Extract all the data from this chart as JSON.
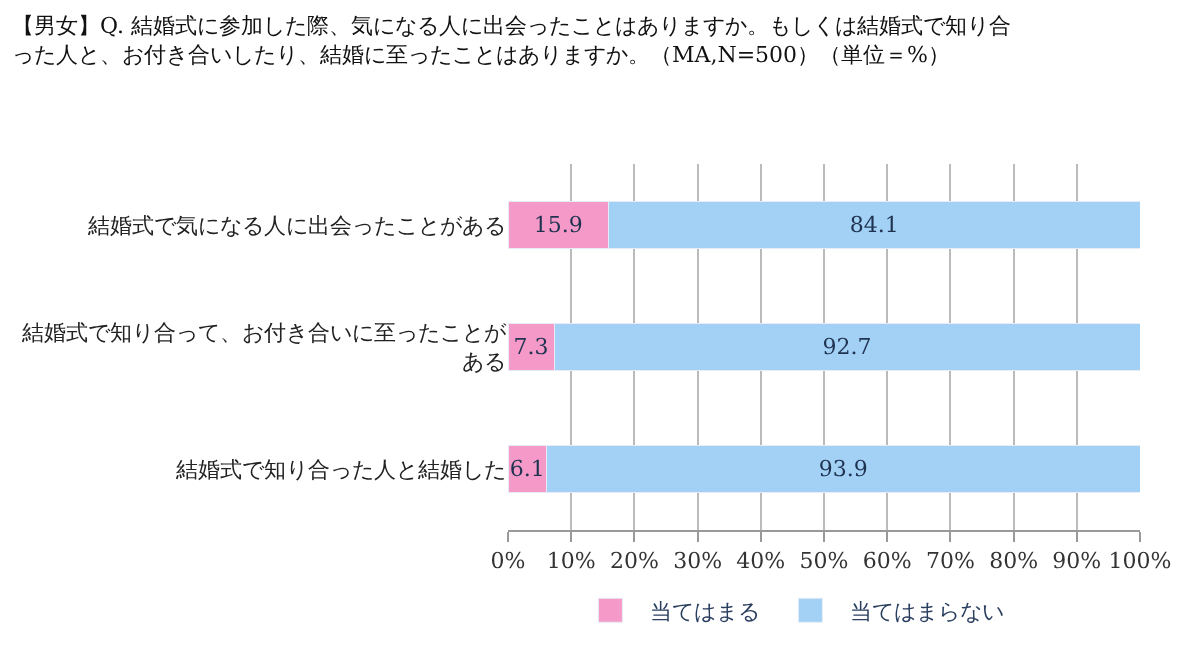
{
  "chart_data": {
    "type": "bar",
    "orientation": "horizontal",
    "stacked": true,
    "title": "【男女】Q. 結婚式に参加した際、気になる人に出会ったことはありますか。もしくは結婚式で知り合った人と、お付き合いしたり、結婚に至ったことはありますか。（MA,N=500）（単位＝%）",
    "categories": [
      "結婚式で気になる人に出会ったことがある",
      "結婚式で知り合って、お付き合いに至ったことがある",
      "結婚式で知り合った人と結婚した"
    ],
    "series": [
      {
        "name": "当てはまる",
        "color": "#f59ac8",
        "values": [
          15.9,
          7.3,
          6.1
        ]
      },
      {
        "name": "当てはまらない",
        "color": "#a3d0f5",
        "values": [
          84.1,
          92.7,
          93.9
        ]
      }
    ],
    "xlim": [
      0,
      100
    ],
    "xticks": [
      {
        "value": 0,
        "label": "0%"
      },
      {
        "value": 10,
        "label": "10%"
      },
      {
        "value": 20,
        "label": "20%"
      },
      {
        "value": 30,
        "label": "30%"
      },
      {
        "value": 40,
        "label": "40%"
      },
      {
        "value": 50,
        "label": "50%"
      },
      {
        "value": 60,
        "label": "60%"
      },
      {
        "value": 70,
        "label": "70%"
      },
      {
        "value": 80,
        "label": "80%"
      },
      {
        "value": 90,
        "label": "90%"
      },
      {
        "value": 100,
        "label": "100%"
      }
    ],
    "grid": "x",
    "data_labels": true,
    "legend": "bottom"
  }
}
